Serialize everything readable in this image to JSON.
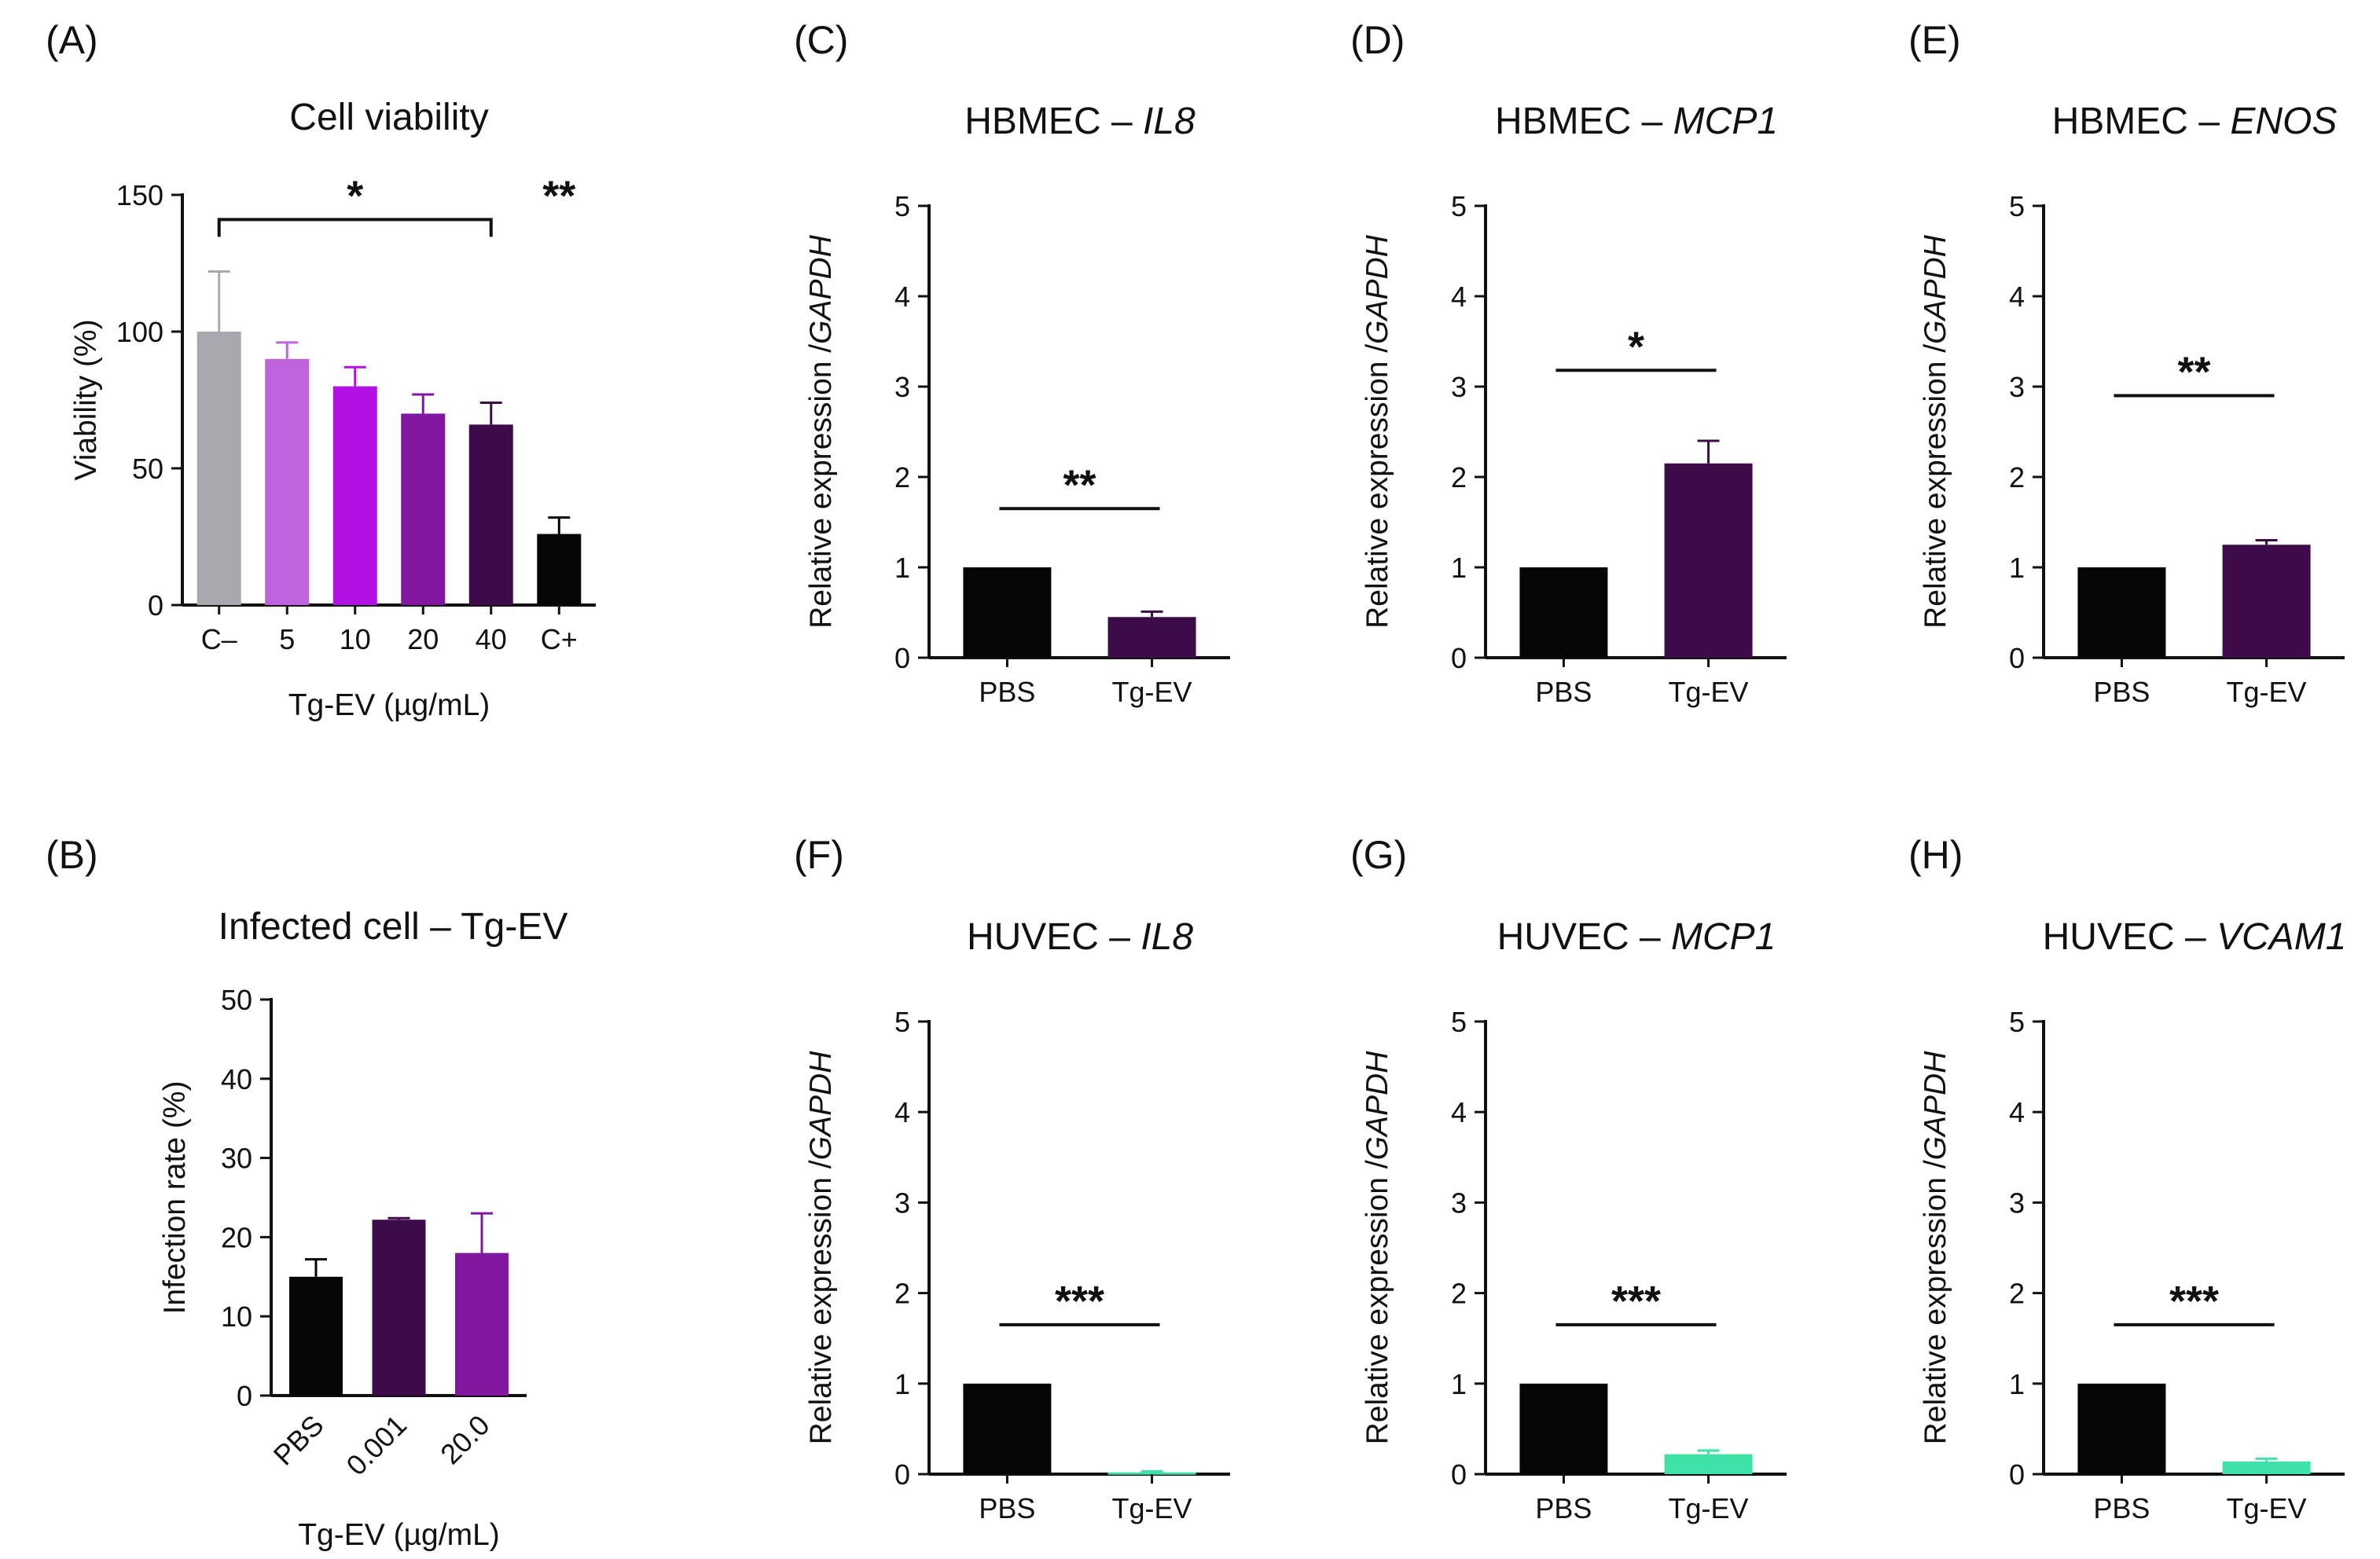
{
  "chart_data": [
    {
      "id": "A",
      "panel_label": "(A)",
      "type": "bar",
      "title": "Cell viability",
      "ylabel": "Viability (%)",
      "xlabel": "Tg-EV (µg/mL)",
      "ylim": [
        0,
        150
      ],
      "yticks": [
        0,
        50,
        100,
        150
      ],
      "categories": [
        "C–",
        "5",
        "10",
        "20",
        "40",
        "C+"
      ],
      "values": [
        100,
        90,
        80,
        70,
        66,
        26
      ],
      "errors": [
        22,
        6,
        7,
        7,
        8,
        6
      ],
      "colors": [
        "#a9a8ae",
        "#be62de",
        "#b112e3",
        "#81169f",
        "#3d0b4a",
        "#050505"
      ],
      "significance": [
        {
          "label": "*",
          "from": 0,
          "to": 4,
          "y": 141
        },
        {
          "label": "**",
          "at": 5,
          "y": 141
        }
      ]
    },
    {
      "id": "B",
      "panel_label": "(B)",
      "type": "bar",
      "title": "Infected cell – Tg-EV",
      "ylabel": "Infection rate (%)",
      "xlabel": "Tg-EV (µg/mL)",
      "ylim": [
        0,
        50
      ],
      "yticks": [
        0,
        10,
        20,
        30,
        40,
        50
      ],
      "categories": [
        "PBS",
        "0.001",
        "20.0"
      ],
      "rotate_ticks": true,
      "values": [
        15,
        22.2,
        18
      ],
      "errors": [
        2.2,
        0.2,
        5
      ],
      "colors": [
        "#050505",
        "#3d0b4a",
        "#81169f"
      ],
      "significance": []
    },
    {
      "id": "C",
      "panel_label": "(C)",
      "type": "bar",
      "title_plain": "HBMEC – ",
      "title_gene": "IL8",
      "ylabel_plain": "Relative expression /",
      "ylabel_gene": "GAPDH",
      "ylim": [
        0,
        5
      ],
      "yticks": [
        0,
        1,
        2,
        3,
        4,
        5
      ],
      "categories": [
        "PBS",
        "Tg-EV"
      ],
      "values": [
        1,
        0.45
      ],
      "errors": [
        0,
        0.06
      ],
      "colors": [
        "#050505",
        "#3d0b4a"
      ],
      "significance": [
        {
          "label": "**",
          "from": 0,
          "to": 1,
          "y": 1.65
        }
      ]
    },
    {
      "id": "D",
      "panel_label": "(D)",
      "type": "bar",
      "title_plain": "HBMEC – ",
      "title_gene": "MCP1",
      "ylabel_plain": "Relative expression /",
      "ylabel_gene": "GAPDH",
      "ylim": [
        0,
        5
      ],
      "yticks": [
        0,
        1,
        2,
        3,
        4,
        5
      ],
      "categories": [
        "PBS",
        "Tg-EV"
      ],
      "values": [
        1,
        2.15
      ],
      "errors": [
        0,
        0.25
      ],
      "colors": [
        "#050505",
        "#3d0b4a"
      ],
      "significance": [
        {
          "label": "*",
          "from": 0,
          "to": 1,
          "y": 3.18
        }
      ]
    },
    {
      "id": "E",
      "panel_label": "(E)",
      "type": "bar",
      "title_plain": "HBMEC – ",
      "title_gene": "ENOS",
      "ylabel_plain": "Relative expression /",
      "ylabel_gene": "GAPDH",
      "ylim": [
        0,
        5
      ],
      "yticks": [
        0,
        1,
        2,
        3,
        4,
        5
      ],
      "categories": [
        "PBS",
        "Tg-EV"
      ],
      "values": [
        1,
        1.25
      ],
      "errors": [
        0,
        0.05
      ],
      "colors": [
        "#050505",
        "#3d0b4a"
      ],
      "significance": [
        {
          "label": "**",
          "from": 0,
          "to": 1,
          "y": 2.9
        }
      ]
    },
    {
      "id": "F",
      "panel_label": "(F)",
      "type": "bar",
      "title_plain": "HUVEC – ",
      "title_gene": "IL8",
      "ylabel_plain": "Relative expression /",
      "ylabel_gene": "GAPDH",
      "ylim": [
        0,
        5
      ],
      "yticks": [
        0,
        1,
        2,
        3,
        4,
        5
      ],
      "categories": [
        "PBS",
        "Tg-EV"
      ],
      "values": [
        1,
        0.02
      ],
      "errors": [
        0,
        0.01
      ],
      "colors": [
        "#050505",
        "#3fe2a6"
      ],
      "significance": [
        {
          "label": "***",
          "from": 0,
          "to": 1,
          "y": 1.65
        }
      ]
    },
    {
      "id": "G",
      "panel_label": "(G)",
      "type": "bar",
      "title_plain": "HUVEC – ",
      "title_gene": "MCP1",
      "ylabel_plain": "Relative expression /",
      "ylabel_gene": "GAPDH",
      "ylim": [
        0,
        5
      ],
      "yticks": [
        0,
        1,
        2,
        3,
        4,
        5
      ],
      "categories": [
        "PBS",
        "Tg-EV"
      ],
      "values": [
        1,
        0.22
      ],
      "errors": [
        0,
        0.04
      ],
      "colors": [
        "#050505",
        "#3fe2a6"
      ],
      "significance": [
        {
          "label": "***",
          "from": 0,
          "to": 1,
          "y": 1.65
        }
      ]
    },
    {
      "id": "H",
      "panel_label": "(H)",
      "type": "bar",
      "title_plain": "HUVEC – ",
      "title_gene": "VCAM1",
      "ylabel_plain": "Relative expression /",
      "ylabel_gene": "GAPDH",
      "ylim": [
        0,
        5
      ],
      "yticks": [
        0,
        1,
        2,
        3,
        4,
        5
      ],
      "categories": [
        "PBS",
        "Tg-EV"
      ],
      "values": [
        1,
        0.14
      ],
      "errors": [
        0,
        0.03
      ],
      "colors": [
        "#050505",
        "#3fe2a6"
      ],
      "significance": [
        {
          "label": "***",
          "from": 0,
          "to": 1,
          "y": 1.65
        }
      ]
    }
  ]
}
